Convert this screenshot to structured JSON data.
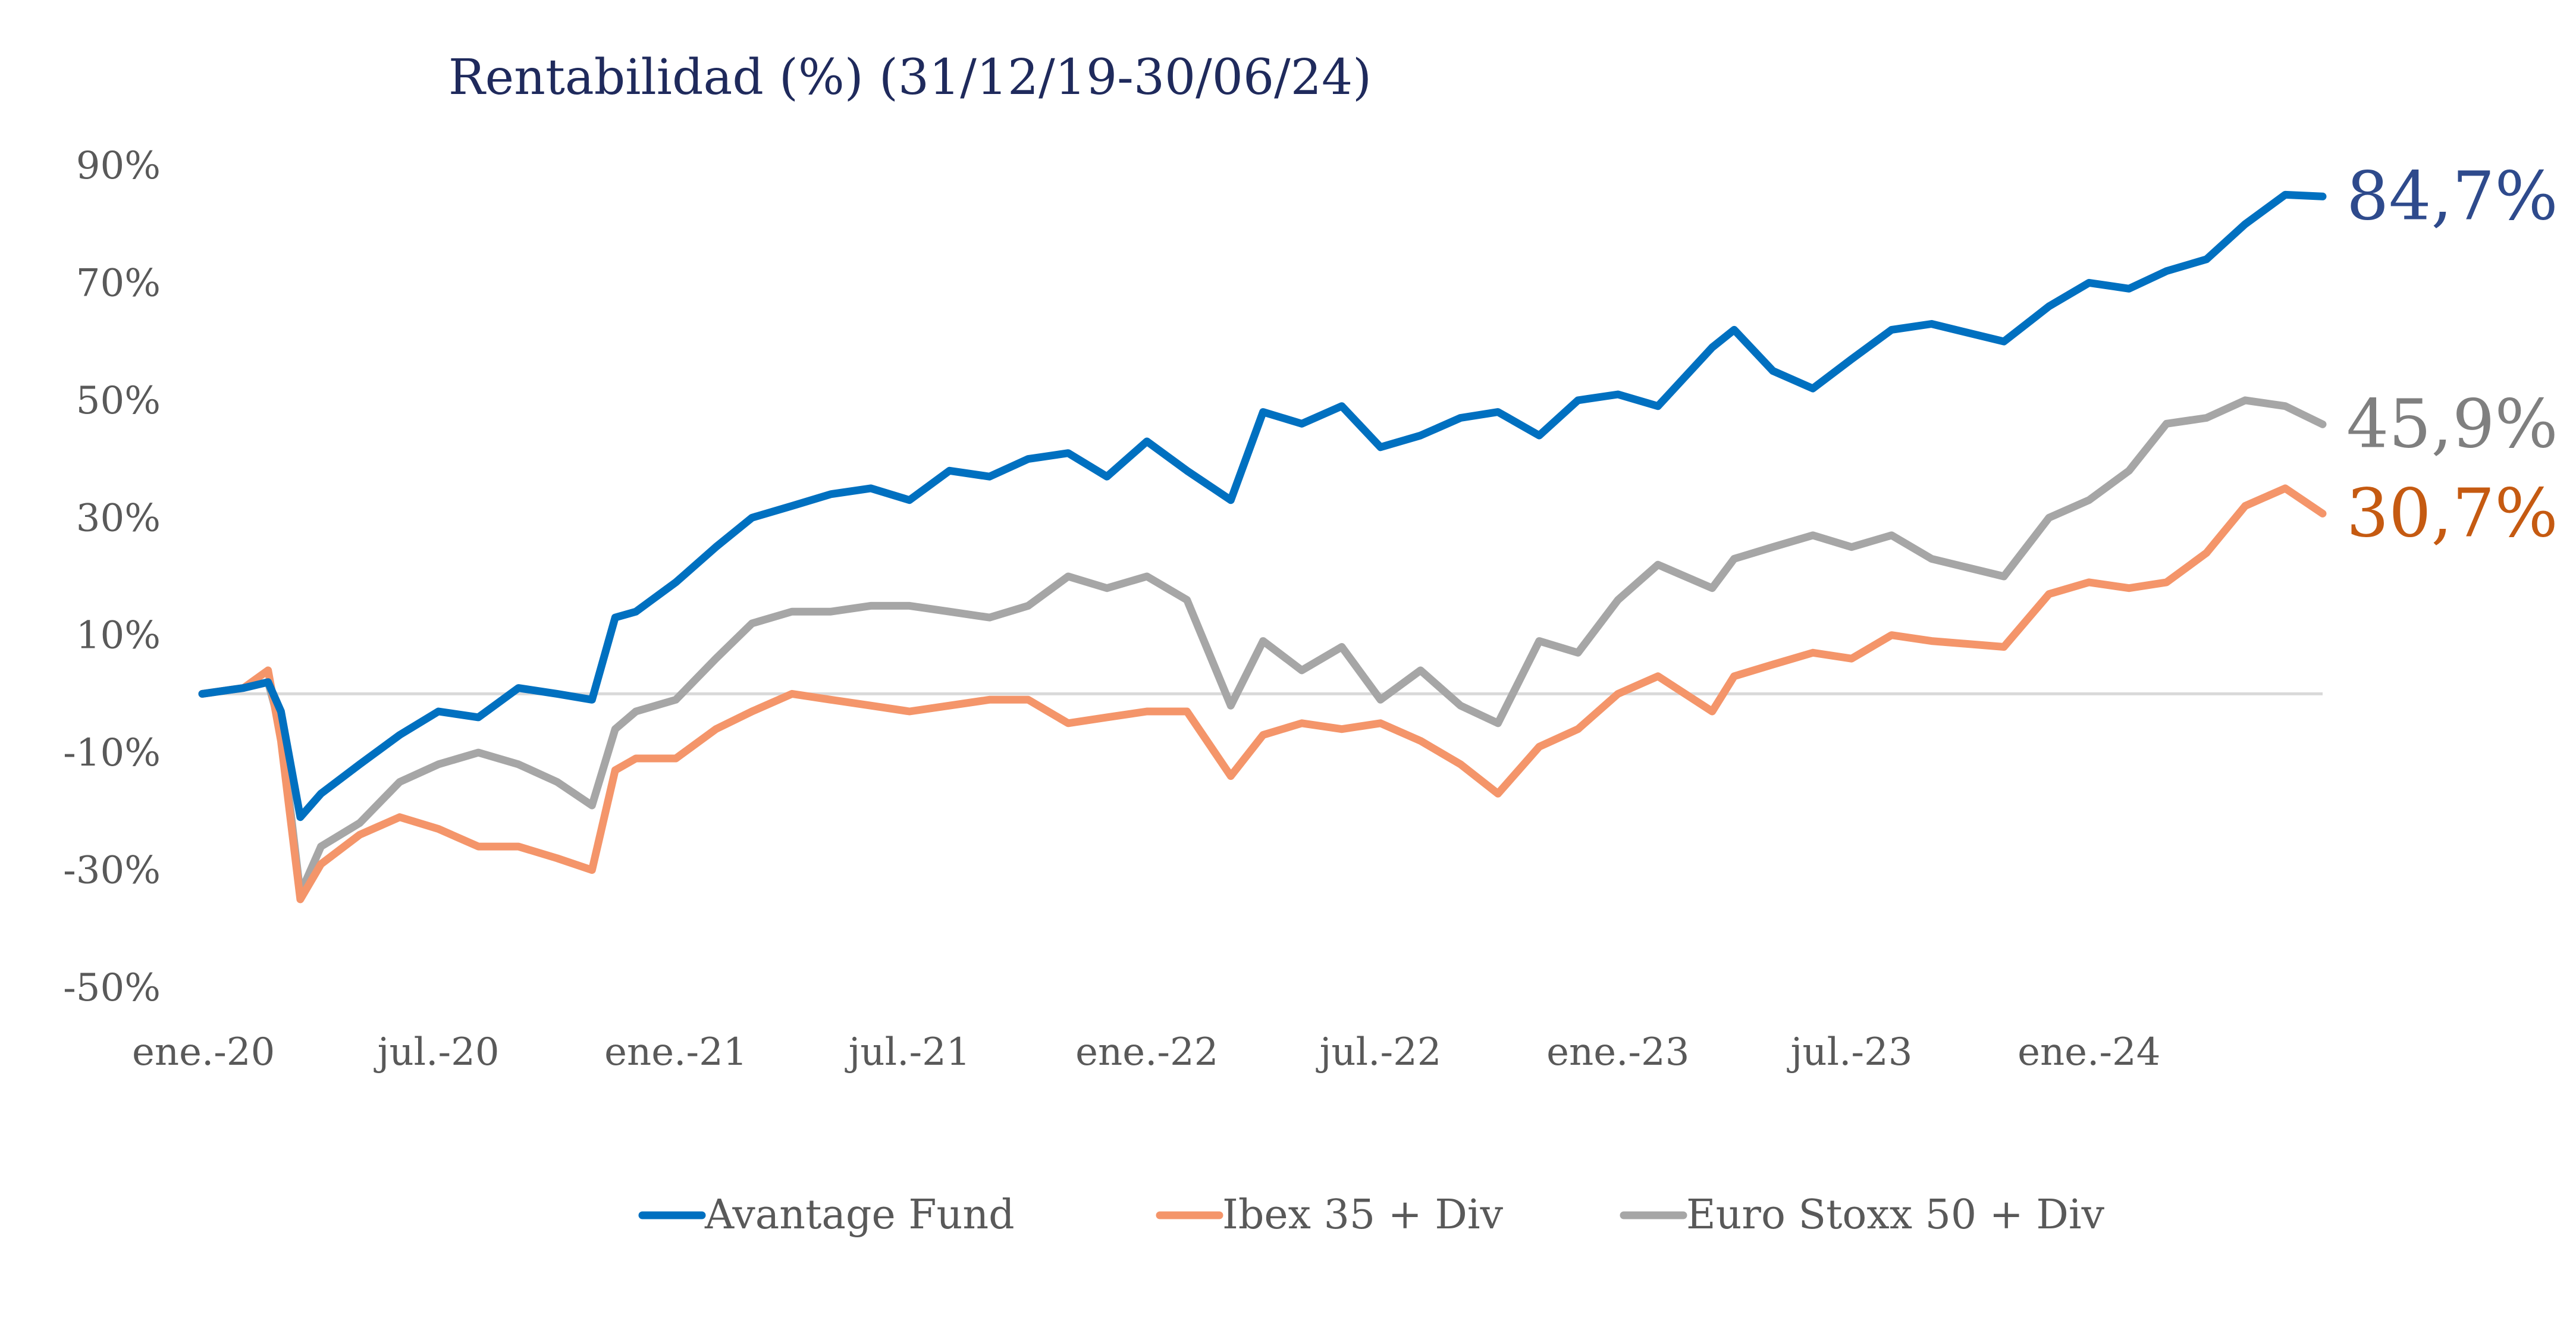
{
  "chart_data": {
    "type": "line",
    "title": "Rentabilidad (%) (31/12/19-30/06/24)",
    "xlabel": "",
    "ylabel": "",
    "ylim": [
      -50,
      90
    ],
    "y_ticks": [
      "90%",
      "70%",
      "50%",
      "30%",
      "10%",
      "-10%",
      "-30%",
      "-50%"
    ],
    "x_ticks": [
      "ene.-20",
      "jul.-20",
      "ene.-21",
      "jul.-21",
      "ene.-22",
      "jul.-22",
      "ene.-23",
      "jul.-23",
      "ene.-24"
    ],
    "zero_line": true,
    "legend_position": "bottom",
    "x": [
      "2019-12-31",
      "2020-02-01",
      "2020-02-20",
      "2020-03-01",
      "2020-03-16",
      "2020-04-01",
      "2020-05-01",
      "2020-06-01",
      "2020-07-01",
      "2020-08-01",
      "2020-09-01",
      "2020-10-01",
      "2020-10-28",
      "2020-11-15",
      "2020-12-01",
      "2021-01-01",
      "2021-02-01",
      "2021-03-01",
      "2021-04-01",
      "2021-05-01",
      "2021-06-01",
      "2021-07-01",
      "2021-08-01",
      "2021-09-01",
      "2021-10-01",
      "2021-11-01",
      "2021-12-01",
      "2022-01-01",
      "2022-02-01",
      "2022-03-07",
      "2022-04-01",
      "2022-05-01",
      "2022-06-01",
      "2022-07-01",
      "2022-08-01",
      "2022-09-01",
      "2022-09-30",
      "2022-11-01",
      "2022-12-01",
      "2023-01-01",
      "2023-02-01",
      "2023-03-15",
      "2023-04-01",
      "2023-05-01",
      "2023-06-01",
      "2023-07-01",
      "2023-08-01",
      "2023-09-01",
      "2023-10-27",
      "2023-12-01",
      "2024-01-01",
      "2024-02-01",
      "2024-03-01",
      "2024-04-01",
      "2024-05-01",
      "2024-06-01",
      "2024-06-30"
    ],
    "series": [
      {
        "name": "Avantage Fund",
        "color": "#0070c0",
        "end_label": "84,7%",
        "end_label_color": "#2e4a8c",
        "values": [
          0,
          1,
          2,
          -3,
          -21,
          -17,
          -12,
          -7,
          -3,
          -4,
          1,
          0,
          -1,
          13,
          14,
          19,
          25,
          30,
          32,
          34,
          35,
          33,
          38,
          37,
          40,
          41,
          37,
          43,
          38,
          33,
          48,
          46,
          49,
          42,
          44,
          47,
          48,
          44,
          50,
          51,
          49,
          59,
          62,
          55,
          52,
          57,
          62,
          63,
          60,
          66,
          70,
          69,
          72,
          74,
          80,
          85,
          84.7
        ]
      },
      {
        "name": "Ibex 35 + Div",
        "color": "#f4956a",
        "end_label": "30,7%",
        "end_label_color": "#c55a11",
        "values": [
          0,
          1,
          4,
          -8,
          -35,
          -29,
          -24,
          -21,
          -23,
          -26,
          -26,
          -28,
          -30,
          -13,
          -11,
          -11,
          -6,
          -3,
          0,
          -1,
          -2,
          -3,
          -2,
          -1,
          -1,
          -5,
          -4,
          -3,
          -3,
          -14,
          -7,
          -5,
          -6,
          -5,
          -8,
          -12,
          -17,
          -9,
          -6,
          0,
          3,
          -3,
          3,
          5,
          7,
          6,
          10,
          9,
          8,
          17,
          19,
          18,
          19,
          24,
          32,
          35,
          30.7
        ]
      },
      {
        "name": "Euro Stoxx 50 + Div",
        "color": "#a6a6a6",
        "end_label": "45,9%",
        "end_label_color": "#7f7f7f",
        "values": [
          0,
          1,
          2,
          -6,
          -34,
          -26,
          -22,
          -15,
          -12,
          -10,
          -12,
          -15,
          -19,
          -6,
          -3,
          -1,
          6,
          12,
          14,
          14,
          15,
          15,
          14,
          13,
          15,
          20,
          18,
          20,
          16,
          -2,
          9,
          4,
          8,
          -1,
          4,
          -2,
          -5,
          9,
          7,
          16,
          22,
          18,
          23,
          25,
          27,
          25,
          27,
          23,
          20,
          30,
          33,
          38,
          46,
          47,
          50,
          49,
          45.9
        ]
      }
    ]
  }
}
